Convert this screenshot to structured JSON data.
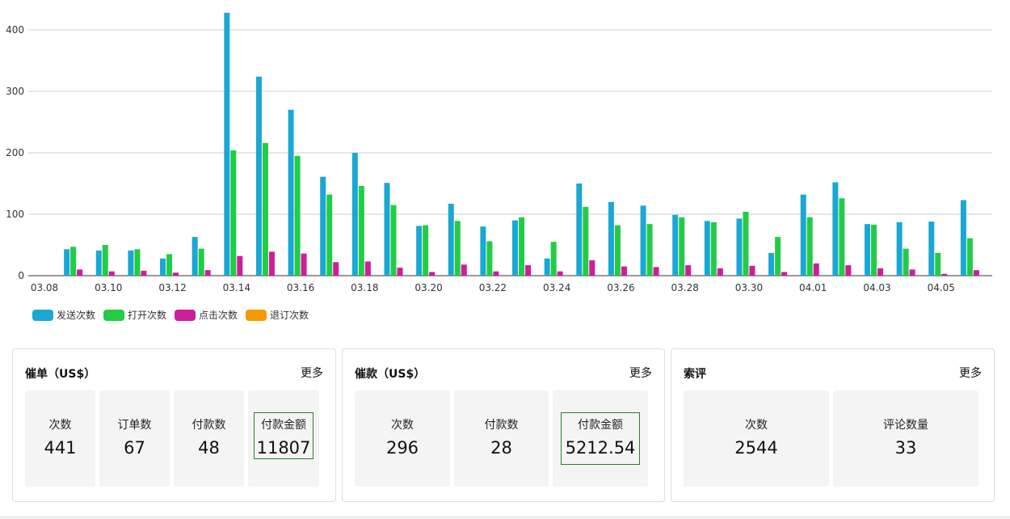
{
  "chart_data": {
    "type": "bar",
    "categories": [
      "03.08",
      "03.09",
      "03.10",
      "03.11",
      "03.12",
      "03.13",
      "03.14",
      "03.15",
      "03.16",
      "03.17",
      "03.18",
      "03.19",
      "03.20",
      "03.21",
      "03.22",
      "03.23",
      "03.24",
      "03.25",
      "03.26",
      "03.27",
      "03.28",
      "03.29",
      "03.30",
      "03.31",
      "04.01",
      "04.02",
      "04.03",
      "04.04",
      "04.05",
      "04.06"
    ],
    "x_tick_labels": [
      "03.08",
      "03.10",
      "03.12",
      "03.14",
      "03.16",
      "03.18",
      "03.20",
      "03.22",
      "03.24",
      "03.26",
      "03.28",
      "03.30",
      "04.01",
      "04.03",
      "04.05"
    ],
    "y_ticks": [
      0,
      100,
      200,
      300,
      400
    ],
    "ylim": [
      0,
      450
    ],
    "grid": true,
    "legend_position": "bottom-left",
    "series": [
      {
        "name": "发送次数",
        "color": "#1aa8d3",
        "values": [
          0,
          43,
          41,
          41,
          28,
          63,
          428,
          324,
          270,
          161,
          200,
          151,
          81,
          117,
          80,
          90,
          28,
          150,
          120,
          114,
          99,
          89,
          93,
          37,
          132,
          152,
          84,
          87,
          88,
          123
        ]
      },
      {
        "name": "打开次数",
        "color": "#22cc44",
        "values": [
          0,
          47,
          50,
          43,
          35,
          44,
          204,
          216,
          195,
          132,
          146,
          115,
          82,
          89,
          56,
          95,
          55,
          112,
          82,
          84,
          95,
          87,
          104,
          63,
          95,
          126,
          83,
          44,
          37,
          61
        ]
      },
      {
        "name": "点击次数",
        "color": "#cc1f99",
        "values": [
          0,
          10,
          7,
          8,
          5,
          9,
          32,
          39,
          36,
          22,
          23,
          13,
          6,
          18,
          7,
          17,
          7,
          25,
          15,
          14,
          17,
          12,
          16,
          6,
          20,
          17,
          12,
          10,
          3,
          9
        ]
      },
      {
        "name": "退订次数",
        "color": "#f59a00",
        "values": [
          0,
          0,
          0,
          0,
          0,
          0,
          0,
          0,
          0,
          0,
          0,
          0,
          0,
          0,
          0,
          0,
          0,
          0,
          0,
          0,
          0,
          0,
          0,
          0,
          0,
          0,
          0,
          0,
          0,
          0
        ]
      }
    ]
  },
  "panels": [
    {
      "title": "催单（US$）",
      "more": "更多",
      "stats": [
        {
          "label": "次数",
          "value": "441",
          "highlight": false
        },
        {
          "label": "订单数",
          "value": "67",
          "highlight": false
        },
        {
          "label": "付款数",
          "value": "48",
          "highlight": false
        },
        {
          "label": "付款金额",
          "value": "11807",
          "highlight": true
        }
      ]
    },
    {
      "title": "催款（US$）",
      "more": "更多",
      "stats": [
        {
          "label": "次数",
          "value": "296",
          "highlight": false
        },
        {
          "label": "付款数",
          "value": "28",
          "highlight": false
        },
        {
          "label": "付款金额",
          "value": "5212.54",
          "highlight": true
        }
      ]
    },
    {
      "title": "索评",
      "more": "更多",
      "stats": [
        {
          "label": "次数",
          "value": "2544",
          "highlight": false
        },
        {
          "label": "评论数量",
          "value": "33",
          "highlight": false
        }
      ]
    }
  ]
}
